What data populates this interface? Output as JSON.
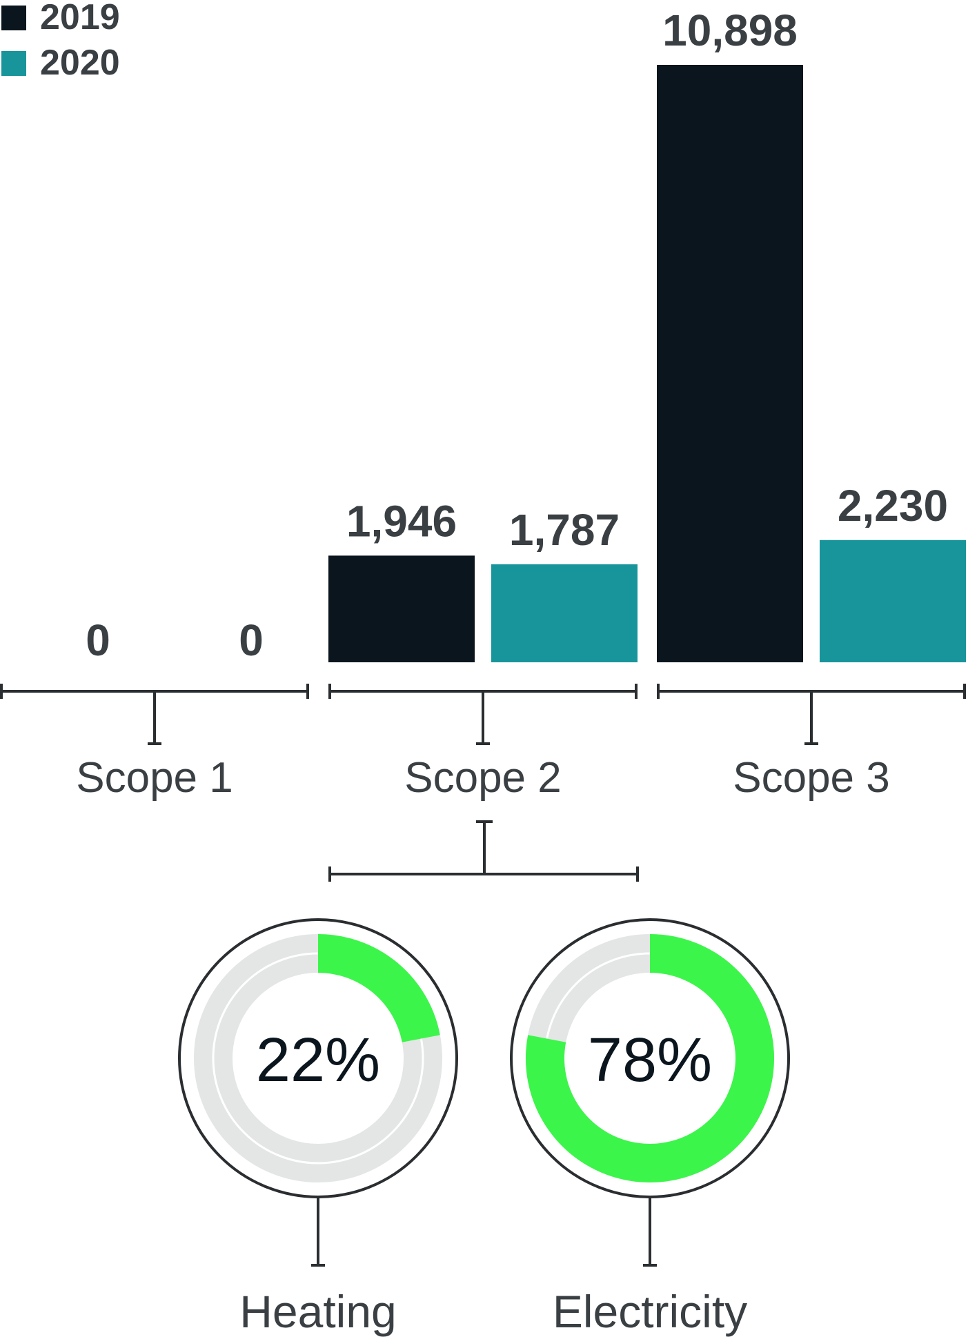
{
  "colors": {
    "y2019": "#0b151d",
    "y2020": "#17959b",
    "text": "#3a3f43",
    "donut_fill": "#3cf54a",
    "donut_track": "#e3e6e4",
    "line": "#2a2e31"
  },
  "chart_data": [
    {
      "type": "bar",
      "categories": [
        "Scope 1",
        "Scope 2",
        "Scope 3"
      ],
      "series": [
        {
          "name": "2019",
          "values": [
            0,
            1946,
            10898
          ],
          "labels": [
            "0",
            "1,946",
            "10,898"
          ]
        },
        {
          "name": "2020",
          "values": [
            0,
            1787,
            2230
          ],
          "labels": [
            "0",
            "1,787",
            "2,230"
          ]
        }
      ],
      "ylim": [
        0,
        10898
      ],
      "grid": false,
      "legend": "top-left"
    },
    {
      "type": "pie",
      "categories": [
        "Heating",
        "Electricity"
      ],
      "values": [
        22,
        78
      ],
      "labels": [
        "22%",
        "78%"
      ]
    }
  ]
}
